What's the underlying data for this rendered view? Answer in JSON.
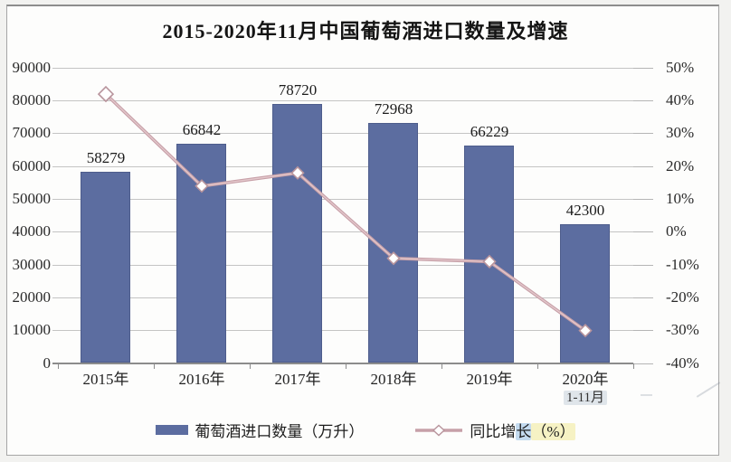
{
  "chart_data": {
    "type": "combo",
    "title": "2015-2020年11月中国葡萄酒进口数量及增速",
    "categories": [
      "2015年",
      "2016年",
      "2017年",
      "2018年",
      "2019年",
      "2020年"
    ],
    "category_sublabels": [
      "",
      "",
      "",
      "",
      "",
      "1-11月"
    ],
    "series": [
      {
        "name": "葡萄酒进口数量（万升）",
        "type": "bar",
        "axis": "left",
        "color": "#5c6da0",
        "values": [
          58279,
          66842,
          78720,
          72968,
          66229,
          42300
        ],
        "data_labels": [
          "58279",
          "66842",
          "78720",
          "72968",
          "66229",
          "42300"
        ]
      },
      {
        "name": "同比增长（%）",
        "type": "line",
        "axis": "right",
        "color": "#c7a0a8",
        "marker": "diamond-hollow-white",
        "values": [
          42,
          14,
          18,
          -8,
          -9,
          -30
        ]
      }
    ],
    "left_axis": {
      "min": 0,
      "max": 90000,
      "step": 10000,
      "ticks": [
        "90000",
        "80000",
        "70000",
        "60000",
        "50000",
        "40000",
        "30000",
        "20000",
        "10000",
        "0"
      ]
    },
    "right_axis": {
      "min": -40,
      "max": 50,
      "step": 10,
      "ticks": [
        "50%",
        "40%",
        "30%",
        "20%",
        "10%",
        "0%",
        "-10%",
        "-20%",
        "-30%",
        "-40%"
      ]
    },
    "grid": true,
    "legend_position": "bottom"
  },
  "legend": {
    "bar_label": "葡萄酒进口数量（万升）",
    "line_label": "同比增长（%）",
    "line_label_parts": {
      "pre": "同比增",
      "highlighted": "长",
      "suffix": "（%）"
    }
  },
  "colors": {
    "bar": "#5c6da0",
    "line": "#c7a0a8",
    "line_sheen": "#e4c8cc",
    "marker_fill": "#ffffff",
    "marker_stroke": "#b8949c",
    "grid": "#c4c4c4",
    "axis": "#8c8c8c"
  }
}
